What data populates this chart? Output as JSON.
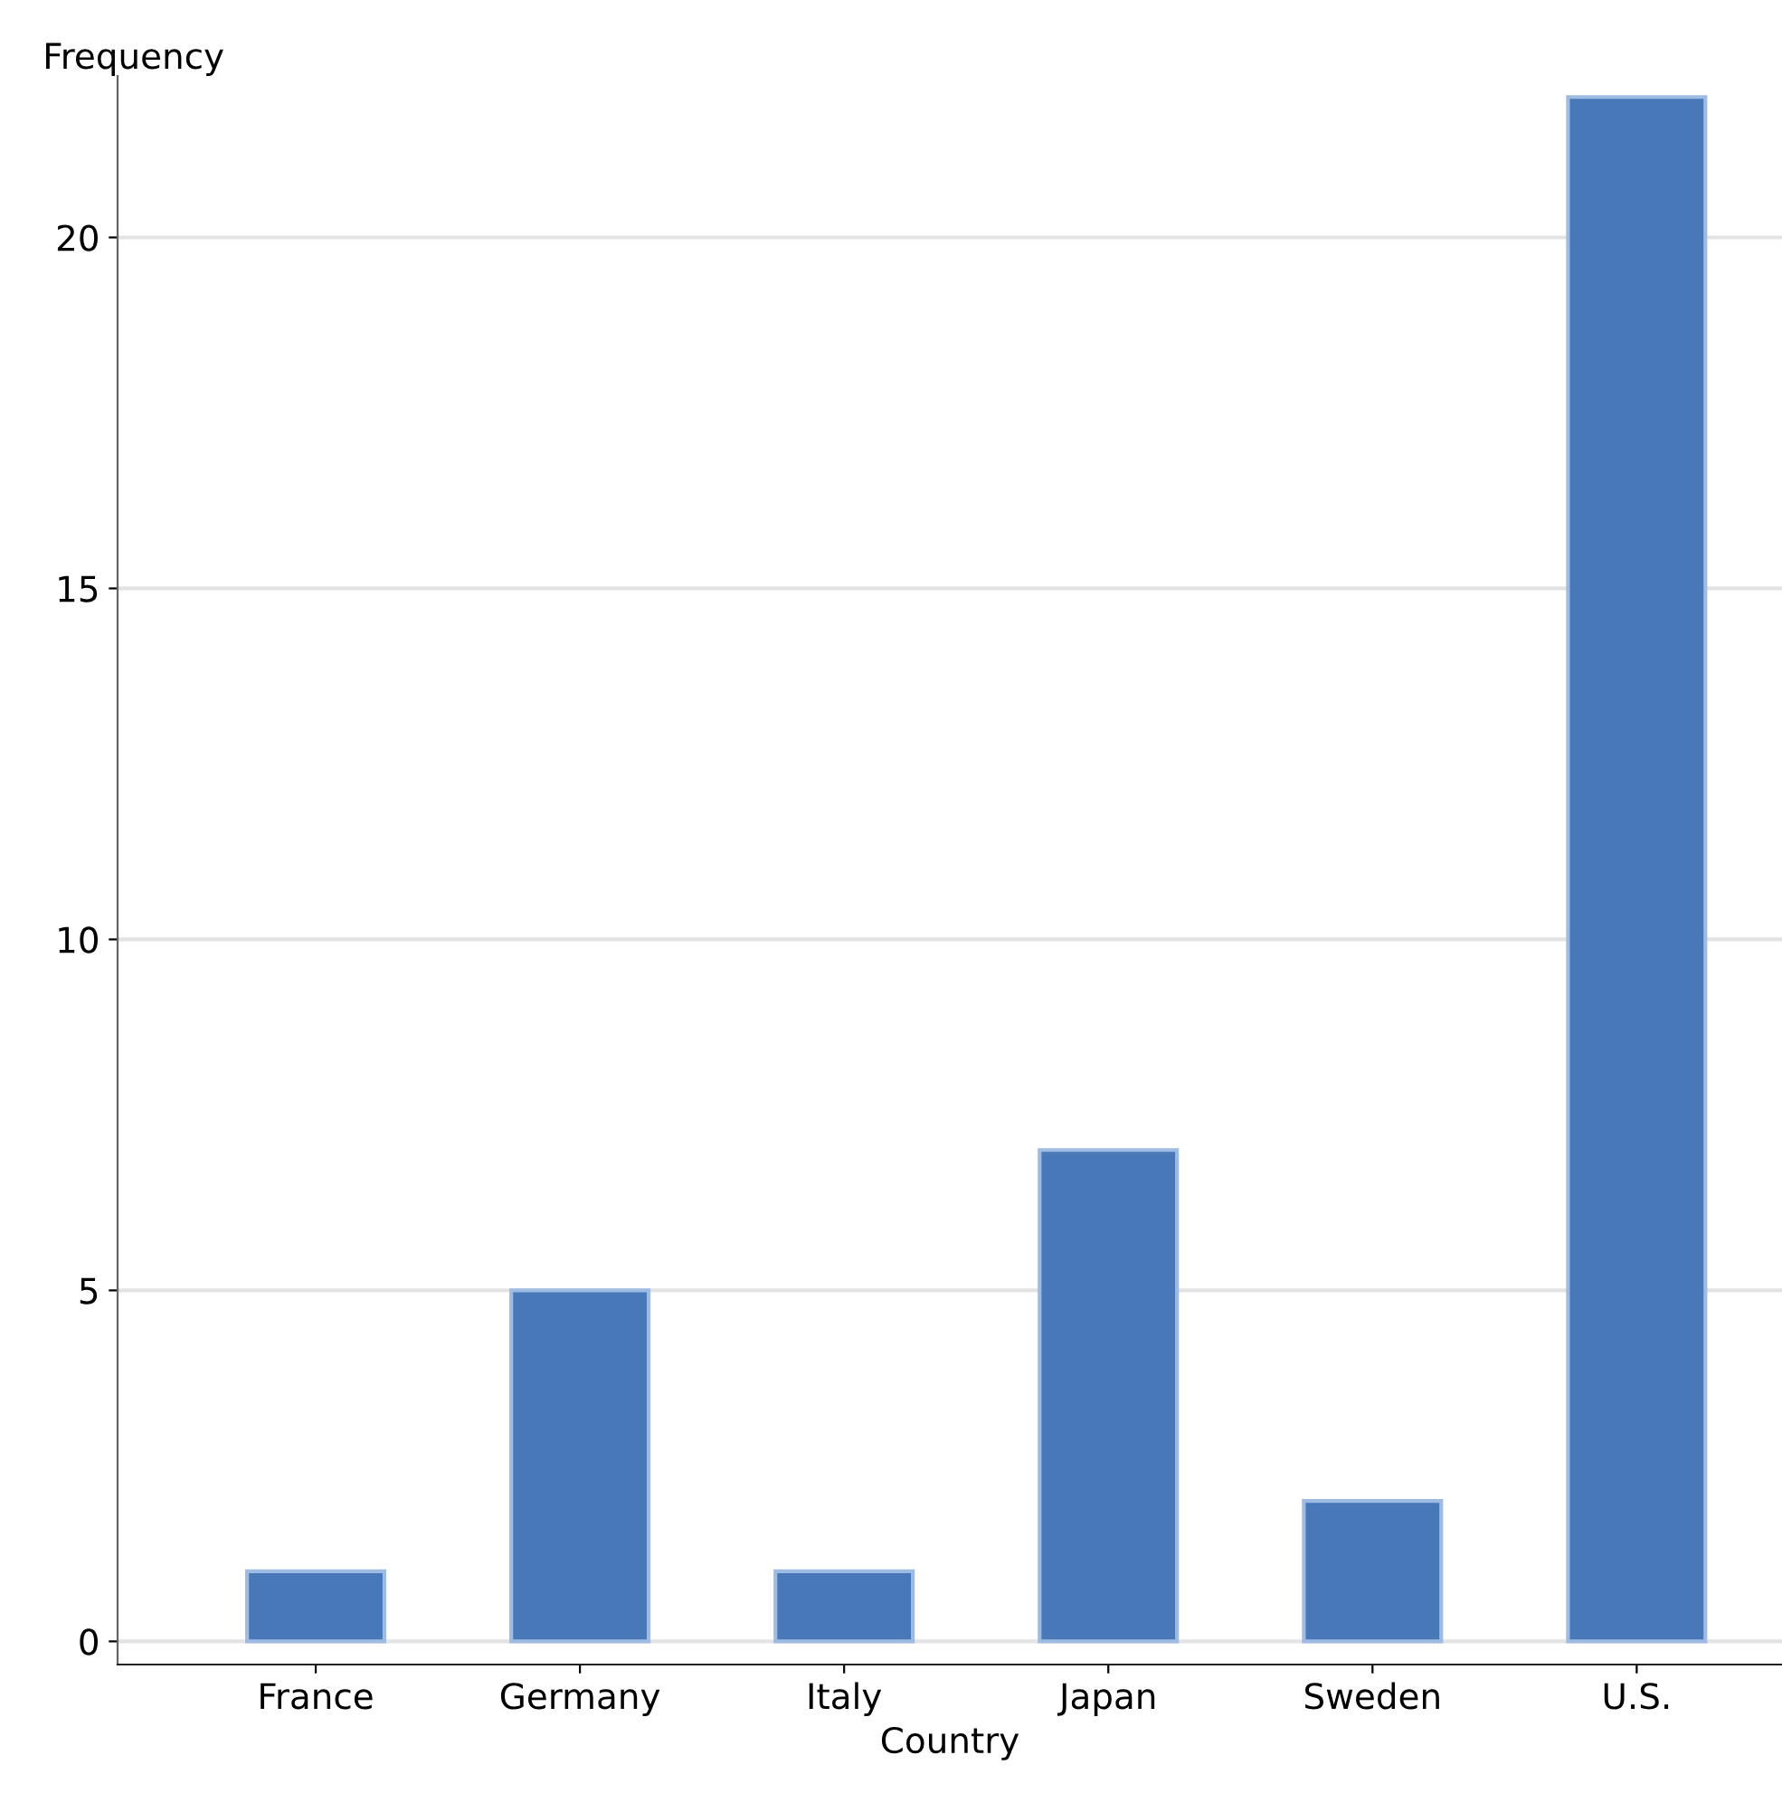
{
  "chart_data": {
    "type": "bar",
    "xlabel": "Country",
    "ylabel": "Frequency",
    "categories": [
      "France",
      "Germany",
      "Italy",
      "Japan",
      "Sweden",
      "U.S."
    ],
    "values": [
      1,
      5,
      1,
      7,
      2,
      22
    ],
    "color": "#4878b8",
    "ylim": [
      -0.33,
      22.3
    ],
    "yticks": [
      0,
      5,
      10,
      15,
      20
    ],
    "grid": "y"
  }
}
